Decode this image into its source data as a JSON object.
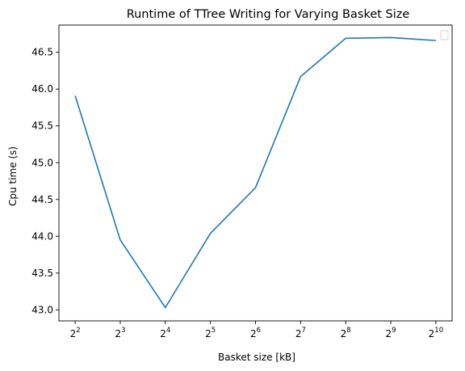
{
  "chart_data": {
    "type": "line",
    "title": "Runtime of TTree Writing for Varying Basket Size",
    "xlabel": "Basket size [kB]",
    "ylabel": "Cpu time (s)",
    "x_scale": "log2",
    "x": [
      4,
      8,
      16,
      32,
      64,
      128,
      256,
      512,
      1024
    ],
    "x_tick_labels": [
      {
        "base": "2",
        "exp": "2"
      },
      {
        "base": "2",
        "exp": "3"
      },
      {
        "base": "2",
        "exp": "4"
      },
      {
        "base": "2",
        "exp": "5"
      },
      {
        "base": "2",
        "exp": "6"
      },
      {
        "base": "2",
        "exp": "7"
      },
      {
        "base": "2",
        "exp": "8"
      },
      {
        "base": "2",
        "exp": "9"
      },
      {
        "base": "2",
        "exp": "10"
      }
    ],
    "series": [
      {
        "values": [
          45.91,
          43.95,
          43.03,
          44.04,
          44.66,
          46.17,
          46.69,
          46.7,
          46.66
        ],
        "color": "#1f77b4"
      }
    ],
    "y_ticks": [
      "43.0",
      "43.5",
      "44.0",
      "44.5",
      "45.0",
      "45.5",
      "46.0",
      "46.5"
    ],
    "ylim": [
      42.85,
      46.87
    ],
    "grid": false,
    "legend": {
      "placement": "upper right",
      "entries": []
    }
  }
}
